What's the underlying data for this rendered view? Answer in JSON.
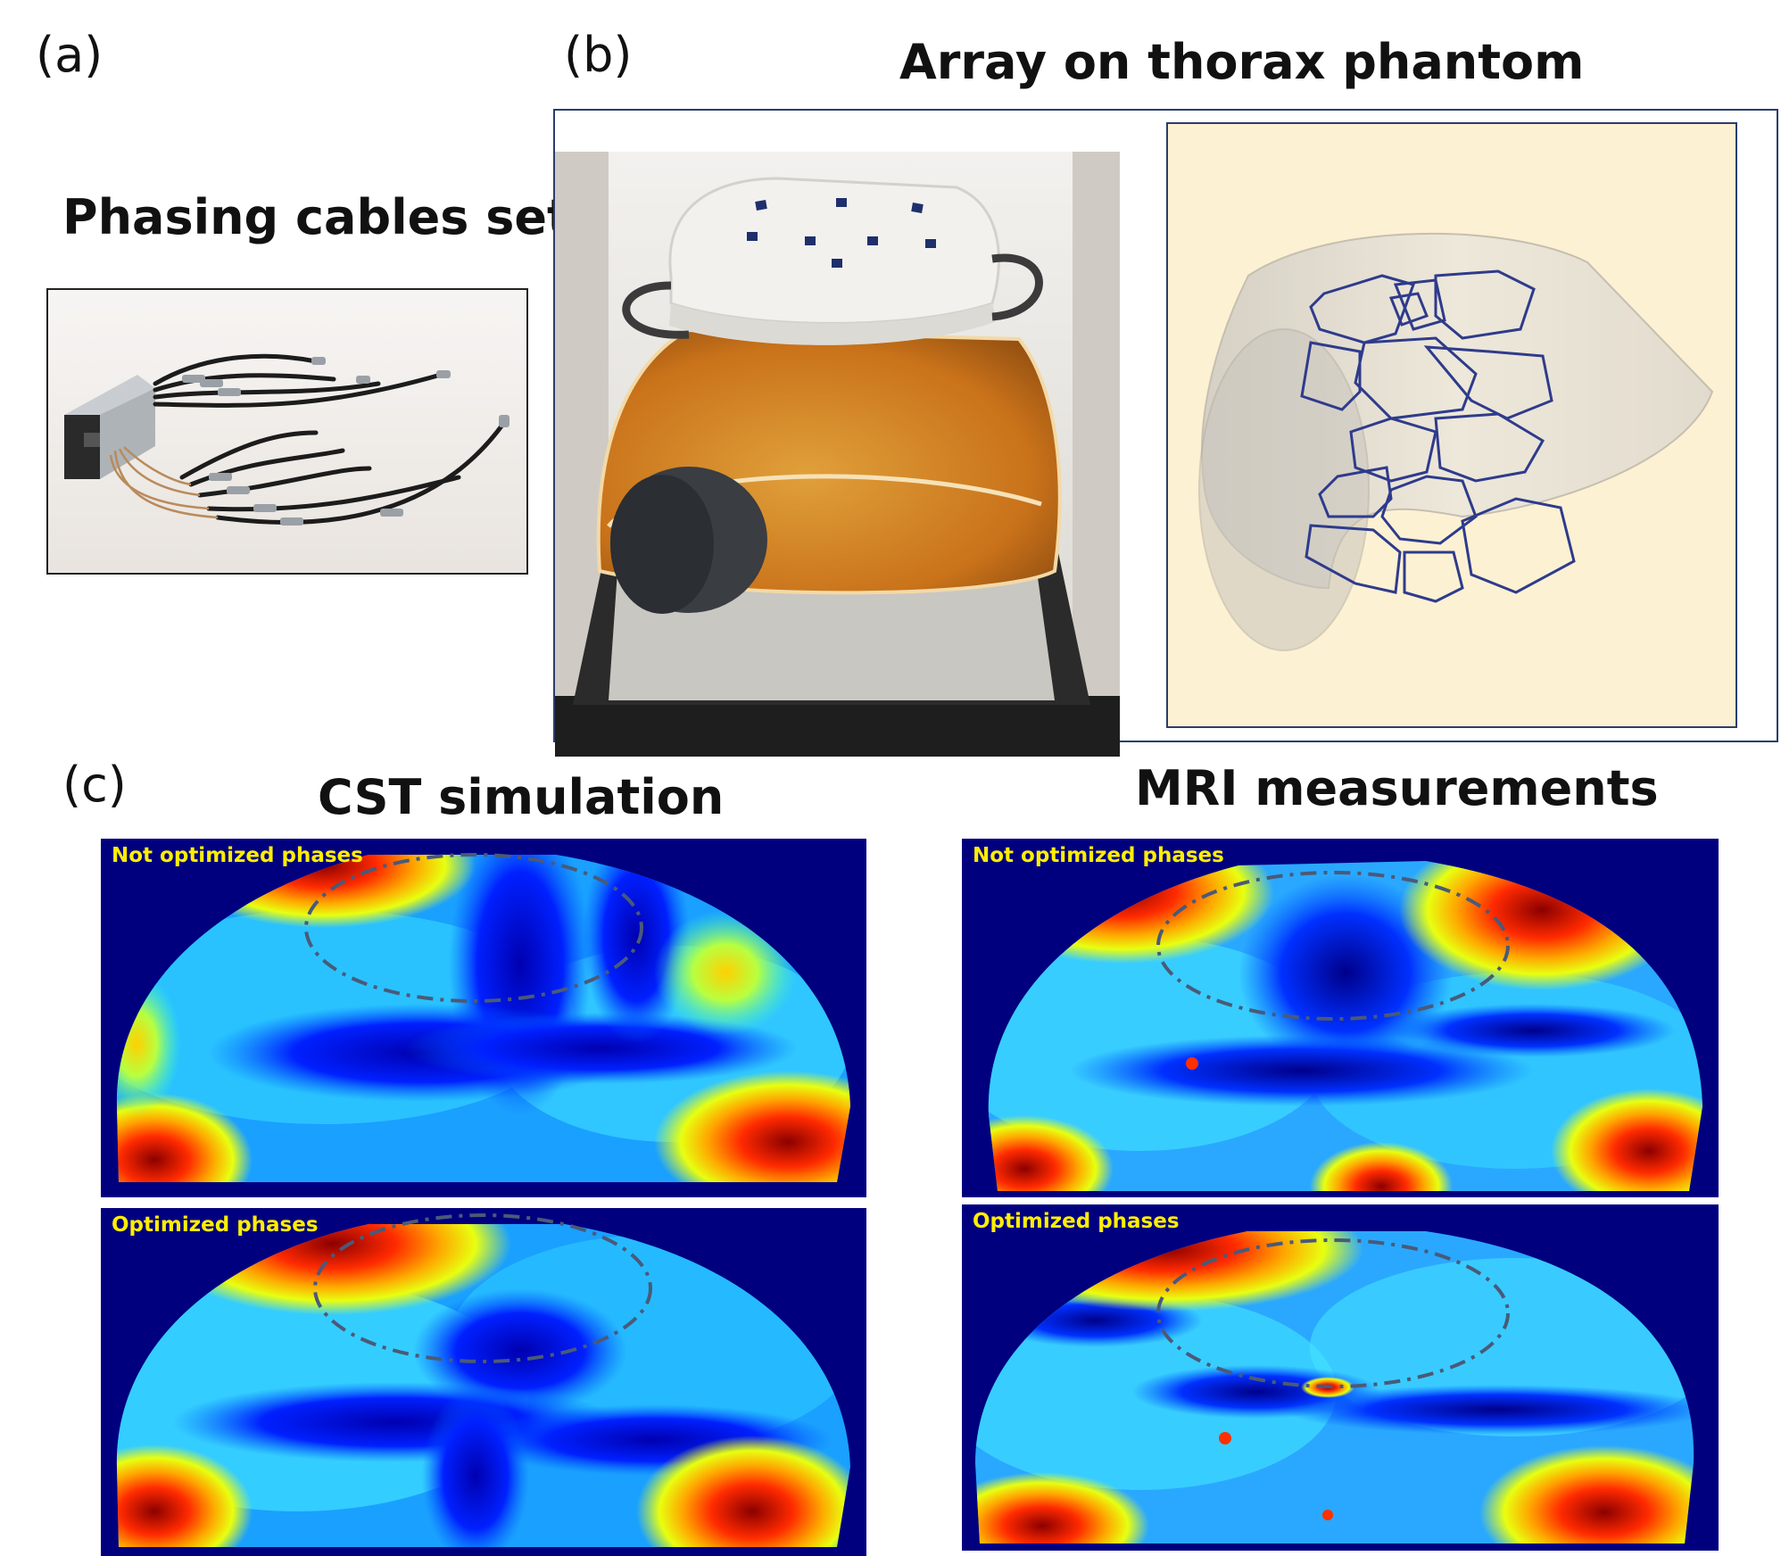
{
  "panels": {
    "a": {
      "label": "(a)",
      "title": "Phasing cables  set"
    },
    "b": {
      "label": "(b)",
      "title": "Array on thorax phantom"
    },
    "c": {
      "label": "(c)",
      "left_title": "CST simulation",
      "right_title": "MRI measurements",
      "maps": [
        {
          "caption": "Not optimized phases"
        },
        {
          "caption": "Optimized phases"
        },
        {
          "caption": "Not optimized phases"
        },
        {
          "caption": "Optimized phases"
        }
      ]
    }
  },
  "colors": {
    "map_background": "#00007f",
    "caption_yellow": "#ffee00",
    "cad_background": "#fdf1d3",
    "coil_blue": "#2e3b8c",
    "roi_ellipse": "#4a5a78"
  }
}
